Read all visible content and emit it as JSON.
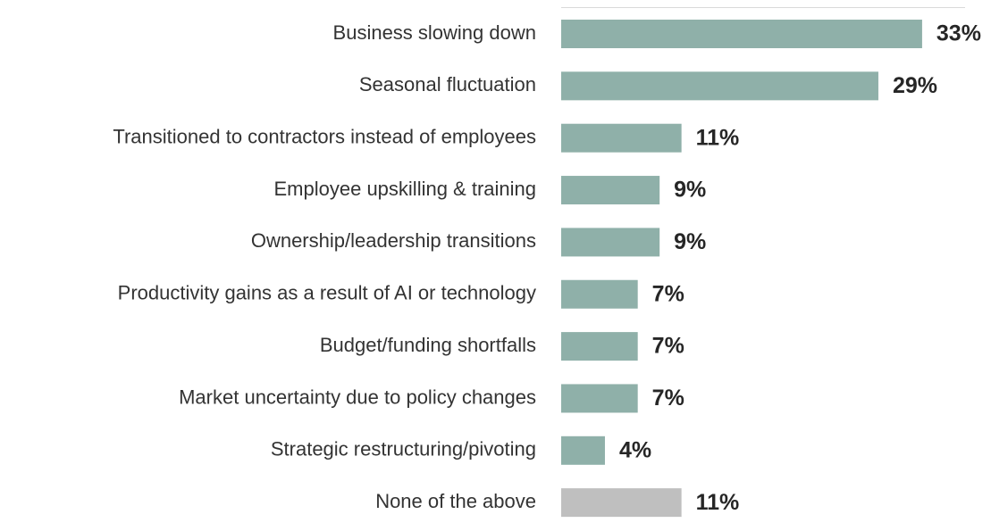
{
  "chart_data": {
    "type": "bar",
    "orientation": "horizontal",
    "categories": [
      "Business slowing down",
      "Seasonal fluctuation",
      "Transitioned to contractors instead of employees",
      "Employee upskilling & training",
      "Ownership/leadership transitions",
      "Productivity gains as a result of AI or technology",
      "Budget/funding shortfalls",
      "Market uncertainty due to policy changes",
      "Strategic restructuring/pivoting",
      "None of the above"
    ],
    "values": [
      33,
      29,
      11,
      9,
      9,
      7,
      7,
      7,
      4,
      11
    ],
    "value_labels": [
      "33%",
      "29%",
      "11%",
      "9%",
      "9%",
      "7%",
      "7%",
      "7%",
      "4%",
      "11%"
    ],
    "colors": [
      "#8fb0a9",
      "#8fb0a9",
      "#8fb0a9",
      "#8fb0a9",
      "#8fb0a9",
      "#8fb0a9",
      "#8fb0a9",
      "#8fb0a9",
      "#8fb0a9",
      "#bfbfbf"
    ]
  }
}
